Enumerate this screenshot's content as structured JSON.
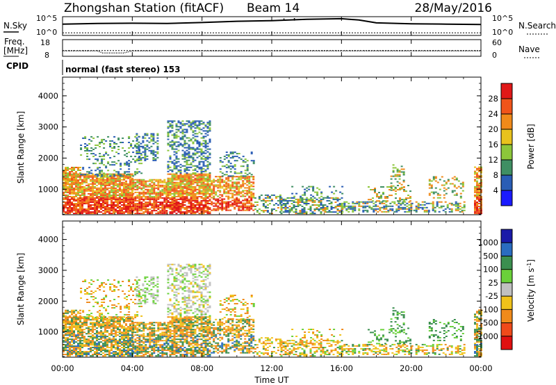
{
  "chart_data": [
    {
      "type": "line",
      "title": "Zhongshan Station (fitACF)",
      "beam": "Beam 14",
      "date": "28/May/2016",
      "left_label": "N.Sky",
      "right_label": "N.Search",
      "left_ticks": [
        "10^5",
        "10^0"
      ],
      "right_ticks": [
        "10^5",
        "10^0"
      ],
      "x": [
        0,
        2,
        4,
        6,
        8,
        10,
        12,
        13,
        14,
        16,
        17,
        18,
        20,
        22,
        24
      ],
      "n_sky": [
        3.1,
        3.3,
        3.4,
        3.3,
        3.6,
        4.0,
        4.2,
        4.4,
        4.6,
        4.8,
        4.4,
        3.5,
        3.2,
        3.1,
        3.0
      ],
      "n_search": [
        0.4,
        0.4,
        0.4,
        0.4,
        0.4,
        0.4,
        0.4,
        0.4,
        0.4,
        0.4,
        0.4,
        0.4,
        0.4,
        0.4,
        0.4
      ]
    },
    {
      "type": "line",
      "left_label_top": "Freq.",
      "left_label_bottom": "[MHz]",
      "right_label": "Nave",
      "left_ticks": [
        "18",
        "8"
      ],
      "right_ticks": [
        "60",
        "0"
      ],
      "x": [
        0,
        2,
        2.3,
        3.5,
        4,
        8,
        12,
        16,
        20,
        24
      ],
      "freq": [
        11,
        11,
        9.5,
        9.5,
        11,
        11,
        11,
        11,
        11,
        11
      ],
      "nave": [
        20,
        20,
        20,
        20,
        20,
        20,
        20,
        20,
        20,
        20
      ]
    },
    {
      "type": "table",
      "label": "CPID",
      "text": "normal (fast stereo) 153"
    },
    {
      "type": "heatmap",
      "ylabel": "Slant Range [km]",
      "yticks": [
        "1000",
        "2000",
        "3000",
        "4000"
      ],
      "colorbar_label": "Power [dB]",
      "colorbar_ticks": [
        "4",
        "8",
        "12",
        "16",
        "20",
        "24",
        "28"
      ],
      "colorbar_colors": [
        "#1a1aff",
        "#2a5db5",
        "#3f8f63",
        "#8cc63a",
        "#e8c21d",
        "#f08a1a",
        "#f0541a",
        "#e01818"
      ]
    },
    {
      "type": "heatmap",
      "ylabel": "Slant Range [km]",
      "yticks": [
        "1000",
        "2000",
        "3000",
        "4000"
      ],
      "colorbar_label": "Velocity [m s-1]",
      "colorbar_label_main": "Velocity  [m s",
      "colorbar_label_sup": "-1",
      "colorbar_label_end": "]",
      "colorbar_ticks": [
        "1000",
        "500",
        "100",
        "25",
        "-25",
        "-100",
        "-500",
        "-1000"
      ],
      "colorbar_colors": [
        "#1a1aa8",
        "#2a6cc0",
        "#3b8f4f",
        "#6ad13a",
        "#c0c0c0",
        "#f0c21a",
        "#f08a1a",
        "#f04a1a",
        "#e01010"
      ],
      "xlabel": "Time UT",
      "xticks": [
        "00:00",
        "04:00",
        "08:00",
        "12:00",
        "16:00",
        "20:00",
        "00:00"
      ],
      "xlim": [
        0,
        24
      ]
    }
  ]
}
